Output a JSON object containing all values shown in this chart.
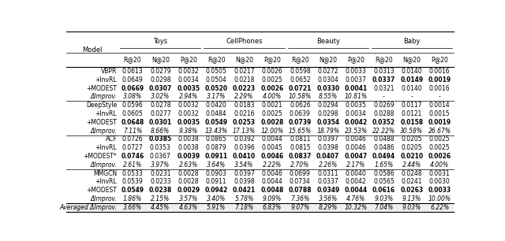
{
  "figsize": [
    6.4,
    3.06
  ],
  "dpi": 100,
  "col_groups": [
    "Toys",
    "CellPhones",
    "Beauty",
    "Baby"
  ],
  "sub_cols": [
    "R@20",
    "N@20",
    "P@20"
  ],
  "rows": [
    {
      "model": "VBPR",
      "vals": [
        "0.0613",
        "0.0279",
        "0.0032",
        "0.0505",
        "0.0217",
        "0.0026",
        "0.0598",
        "0.0272",
        "0.0033",
        "0.0313",
        "0.0140",
        "0.0016"
      ],
      "bold": [
        false,
        false,
        false,
        false,
        false,
        false,
        false,
        false,
        false,
        false,
        false,
        false
      ],
      "italic": false
    },
    {
      "model": "+InvRL",
      "vals": [
        "0.0649",
        "0.0298",
        "0.0034",
        "0.0504",
        "0.0218",
        "0.0025",
        "0.0652",
        "0.0304",
        "0.0037",
        "0.0337",
        "0.0149",
        "0.0019"
      ],
      "bold": [
        false,
        false,
        false,
        false,
        false,
        false,
        false,
        false,
        false,
        true,
        true,
        true
      ],
      "italic": false
    },
    {
      "model": "+MODEST",
      "vals": [
        "0.0669",
        "0.0307",
        "0.0035",
        "0.0520",
        "0.0223",
        "0.0026",
        "0.0721",
        "0.0330",
        "0.0041",
        "0.0321",
        "0.0140",
        "0.0016"
      ],
      "bold": [
        true,
        true,
        true,
        true,
        true,
        true,
        true,
        true,
        true,
        false,
        false,
        false
      ],
      "italic": false
    },
    {
      "model": "ΔImprov.",
      "vals": [
        "3.08%",
        "3.02%",
        "2.94%",
        "3.17%",
        "2.29%",
        "4.00%",
        "10.58%",
        "8.55%",
        "10.81%",
        "-",
        "-",
        "-"
      ],
      "bold": [
        false,
        false,
        false,
        false,
        false,
        false,
        false,
        false,
        false,
        false,
        false,
        false
      ],
      "italic": true
    },
    {
      "model": "DeepStyle",
      "vals": [
        "0.0596",
        "0.0278",
        "0.0032",
        "0.0420",
        "0.0183",
        "0.0021",
        "0.0626",
        "0.0294",
        "0.0035",
        "0.0269",
        "0.0117",
        "0.0014"
      ],
      "bold": [
        false,
        false,
        false,
        false,
        false,
        false,
        false,
        false,
        false,
        false,
        false,
        false
      ],
      "italic": false
    },
    {
      "model": "+InvRL",
      "vals": [
        "0.0605",
        "0.0277",
        "0.0032",
        "0.0484",
        "0.0216",
        "0.0025",
        "0.0639",
        "0.0298",
        "0.0034",
        "0.0288",
        "0.0121",
        "0.0015"
      ],
      "bold": [
        false,
        false,
        false,
        false,
        false,
        false,
        false,
        false,
        false,
        false,
        false,
        false
      ],
      "italic": false
    },
    {
      "model": "+MODEST",
      "vals": [
        "0.0648",
        "0.0301",
        "0.0035",
        "0.0549",
        "0.0253",
        "0.0028",
        "0.0739",
        "0.0354",
        "0.0042",
        "0.0352",
        "0.0158",
        "0.0019"
      ],
      "bold": [
        true,
        true,
        true,
        true,
        true,
        true,
        true,
        true,
        true,
        true,
        true,
        true
      ],
      "italic": false
    },
    {
      "model": "ΔImprov.",
      "vals": [
        "7.11%",
        "8.66%",
        "9.38%",
        "13.43%",
        "17.13%",
        "12.00%",
        "15.65%",
        "18.79%",
        "23.53%",
        "22.22%",
        "30.58%",
        "26.67%"
      ],
      "bold": [
        false,
        false,
        false,
        false,
        false,
        false,
        false,
        false,
        false,
        false,
        false,
        false
      ],
      "italic": true
    },
    {
      "model": "ACF",
      "vals": [
        "0.0726",
        "0.0385",
        "0.0038",
        "0.0865",
        "0.0392",
        "0.0044",
        "0.0811",
        "0.0397",
        "0.0046",
        "0.0488",
        "0.0205",
        "0.0025"
      ],
      "bold": [
        false,
        true,
        false,
        false,
        false,
        false,
        false,
        false,
        false,
        false,
        false,
        false
      ],
      "italic": false
    },
    {
      "model": "+InvRL",
      "vals": [
        "0.0727",
        "0.0353",
        "0.0038",
        "0.0879",
        "0.0396",
        "0.0045",
        "0.0815",
        "0.0398",
        "0.0046",
        "0.0486",
        "0.0205",
        "0.0025"
      ],
      "bold": [
        false,
        false,
        false,
        false,
        false,
        false,
        false,
        false,
        false,
        false,
        false,
        false
      ],
      "italic": false
    },
    {
      "model": "+MODEST*",
      "vals": [
        "0.0746",
        "0.0367",
        "0.0039",
        "0.0911",
        "0.0410",
        "0.0046",
        "0.0837",
        "0.0407",
        "0.0047",
        "0.0494",
        "0.0210",
        "0.0026"
      ],
      "bold": [
        true,
        false,
        true,
        true,
        true,
        true,
        true,
        true,
        true,
        true,
        true,
        true
      ],
      "italic": false
    },
    {
      "model": "ΔImprov.",
      "vals": [
        "2.61%",
        "3.97%",
        "2.63%",
        "3.64%",
        "3.54%",
        "2.22%",
        "2.70%",
        "2.26%",
        "2.17%",
        "1.65%",
        "2.44%",
        "4.00%"
      ],
      "bold": [
        false,
        false,
        false,
        false,
        false,
        false,
        false,
        false,
        false,
        false,
        false,
        false
      ],
      "italic": true
    },
    {
      "model": "MMGCN",
      "vals": [
        "0.0533",
        "0.0231",
        "0.0028",
        "0.0903",
        "0.0397",
        "0.0046",
        "0.0699",
        "0.0311",
        "0.0040",
        "0.0586",
        "0.0248",
        "0.0031"
      ],
      "bold": [
        false,
        false,
        false,
        false,
        false,
        false,
        false,
        false,
        false,
        false,
        false,
        false
      ],
      "italic": false
    },
    {
      "model": "+InvRL",
      "vals": [
        "0.0539",
        "0.0233",
        "0.0028",
        "0.0911",
        "0.0398",
        "0.0044",
        "0.0734",
        "0.0337",
        "0.0042",
        "0.0565",
        "0.0241",
        "0.0030"
      ],
      "bold": [
        false,
        false,
        false,
        false,
        false,
        false,
        false,
        false,
        false,
        false,
        false,
        false
      ],
      "italic": false
    },
    {
      "model": "+MODEST",
      "vals": [
        "0.0549",
        "0.0238",
        "0.0029",
        "0.0942",
        "0.0421",
        "0.0048",
        "0.0788",
        "0.0349",
        "0.0044",
        "0.0616",
        "0.0263",
        "0.0033"
      ],
      "bold": [
        true,
        true,
        true,
        true,
        true,
        true,
        true,
        true,
        true,
        true,
        true,
        true
      ],
      "italic": false
    },
    {
      "model": "ΔImprov.",
      "vals": [
        "1.86%",
        "2.15%",
        "3.57%",
        "3.40%",
        "5.78%",
        "9.09%",
        "7.36%",
        "3.56%",
        "4.76%",
        "9.03%",
        "9.13%",
        "10.00%"
      ],
      "bold": [
        false,
        false,
        false,
        false,
        false,
        false,
        false,
        false,
        false,
        false,
        false,
        false
      ],
      "italic": true
    },
    {
      "model": "Averaged ΔImprov.",
      "vals": [
        "3.66%",
        "4.45%",
        "4.63%",
        "5.91%",
        "7.18%",
        "6.83%",
        "9.07%",
        "8.29%",
        "10.32%",
        "7.04%",
        "9.03%",
        "6.22%"
      ],
      "bold": [
        false,
        false,
        false,
        false,
        false,
        false,
        false,
        false,
        false,
        false,
        false,
        false
      ],
      "italic": true
    }
  ],
  "separator_after": [
    3,
    7,
    11,
    15
  ],
  "bg_gray_row": 16,
  "font_size": 5.5,
  "header_font_size": 6.0,
  "line_color": "#000000",
  "gray_bg": "#efefef"
}
